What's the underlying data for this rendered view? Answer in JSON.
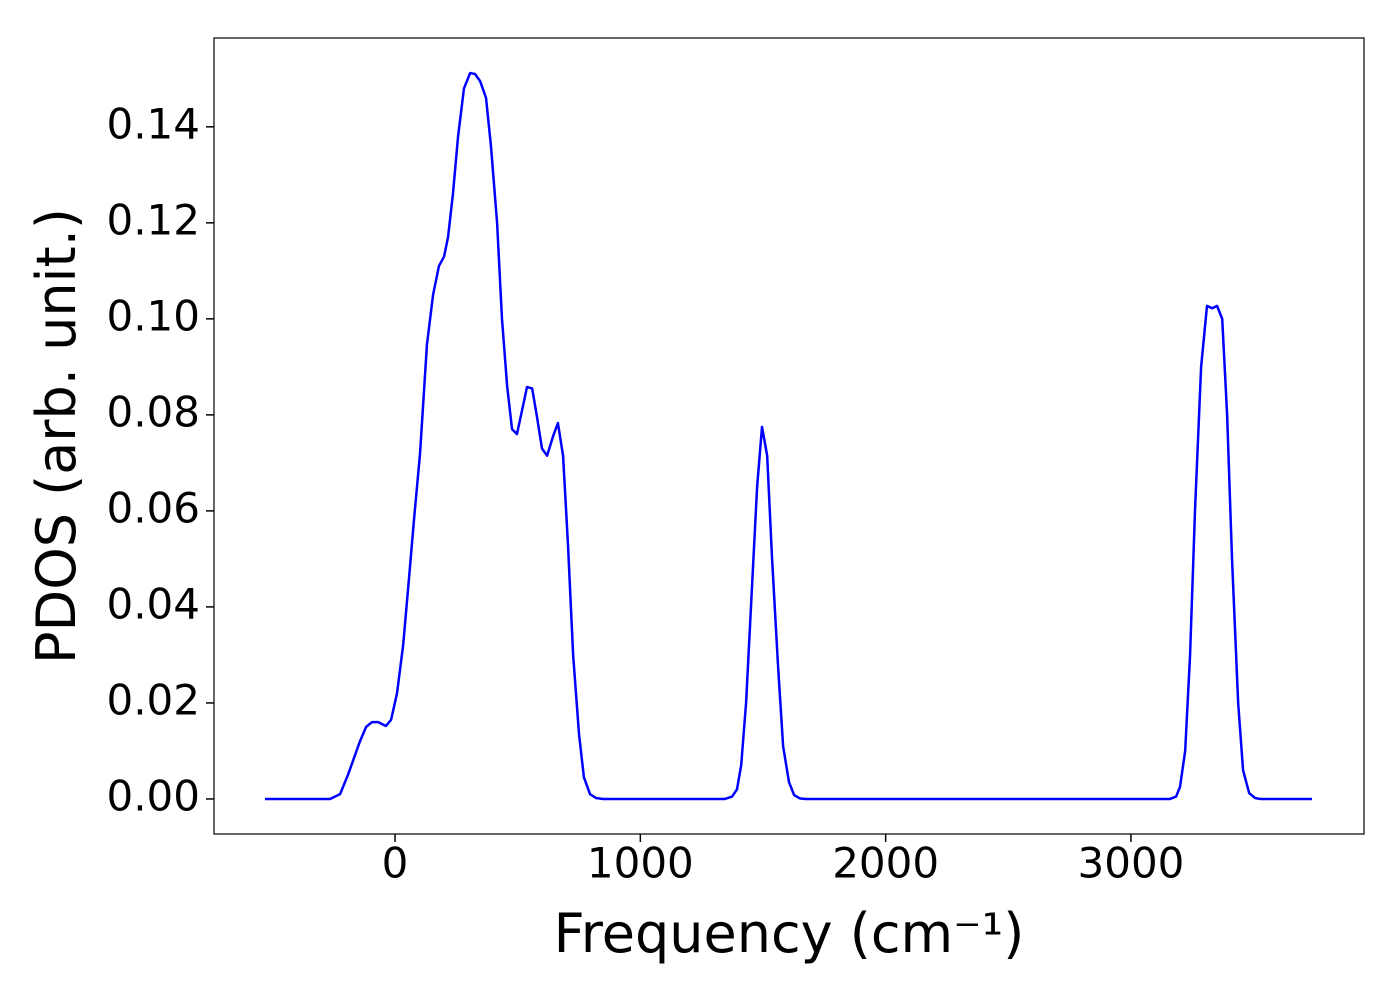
{
  "chart_data": {
    "type": "line",
    "x_label": "Frequency (cm⁻¹)",
    "y_label": "PDOS (arb. unit.)",
    "xlim": [
      -738,
      3950
    ],
    "ylim": [
      -0.0073,
      0.1585
    ],
    "xticks": [
      0,
      1000,
      2000,
      3000
    ],
    "yticks": [
      {
        "value": 0,
        "label": "0.00"
      },
      {
        "value": 0.02,
        "label": "0.02"
      },
      {
        "value": 0.04,
        "label": "0.04"
      },
      {
        "value": 0.06,
        "label": "0.06"
      },
      {
        "value": 0.08,
        "label": "0.08"
      },
      {
        "value": 0.1,
        "label": "0.10"
      },
      {
        "value": 0.12,
        "label": "0.12"
      },
      {
        "value": 0.14,
        "label": "0.14"
      }
    ],
    "grid": false,
    "series": [
      {
        "color": "#0000ff",
        "x": [
          -530,
          -265,
          -224,
          -192,
          -143,
          -118,
          -94,
          -69,
          -37,
          -16,
          8,
          33,
          57,
          77,
          102,
          130,
          155,
          179,
          200,
          216,
          236,
          257,
          281,
          306,
          326,
          347,
          371,
          391,
          416,
          436,
          457,
          477,
          497,
          518,
          538,
          559,
          579,
          599,
          620,
          644,
          664,
          685,
          705,
          726,
          750,
          770,
          795,
          819,
          848,
          1345,
          1374,
          1394,
          1411,
          1431,
          1451,
          1476,
          1496,
          1517,
          1537,
          1561,
          1582,
          1606,
          1627,
          1651,
          1676,
          3159,
          3184,
          3200,
          3221,
          3241,
          3261,
          3286,
          3310,
          3331,
          3351,
          3372,
          3392,
          3412,
          3437,
          3457,
          3482,
          3506,
          3526,
          3738
        ],
        "values": [
          0,
          0,
          0.001,
          0.005,
          0.012,
          0.015,
          0.016,
          0.016,
          0.0152,
          0.0165,
          0.022,
          0.032,
          0.046,
          0.058,
          0.072,
          0.0946,
          0.105,
          0.111,
          0.113,
          0.117,
          0.126,
          0.138,
          0.148,
          0.1512,
          0.151,
          0.1495,
          0.146,
          0.136,
          0.12,
          0.1,
          0.086,
          0.077,
          0.076,
          0.081,
          0.0858,
          0.0855,
          0.0795,
          0.073,
          0.0715,
          0.0755,
          0.0783,
          0.0715,
          0.053,
          0.03,
          0.0135,
          0.0045,
          0.001,
          0.0002,
          0,
          0,
          0.0005,
          0.002,
          0.007,
          0.02,
          0.04,
          0.065,
          0.0775,
          0.0715,
          0.05,
          0.028,
          0.011,
          0.0035,
          0.0008,
          0.0001,
          0,
          0,
          0.0005,
          0.0025,
          0.01,
          0.03,
          0.06,
          0.09,
          0.1027,
          0.1022,
          0.1027,
          0.1,
          0.08,
          0.05,
          0.02,
          0.006,
          0.0012,
          0.0002,
          0,
          0
        ]
      }
    ]
  }
}
